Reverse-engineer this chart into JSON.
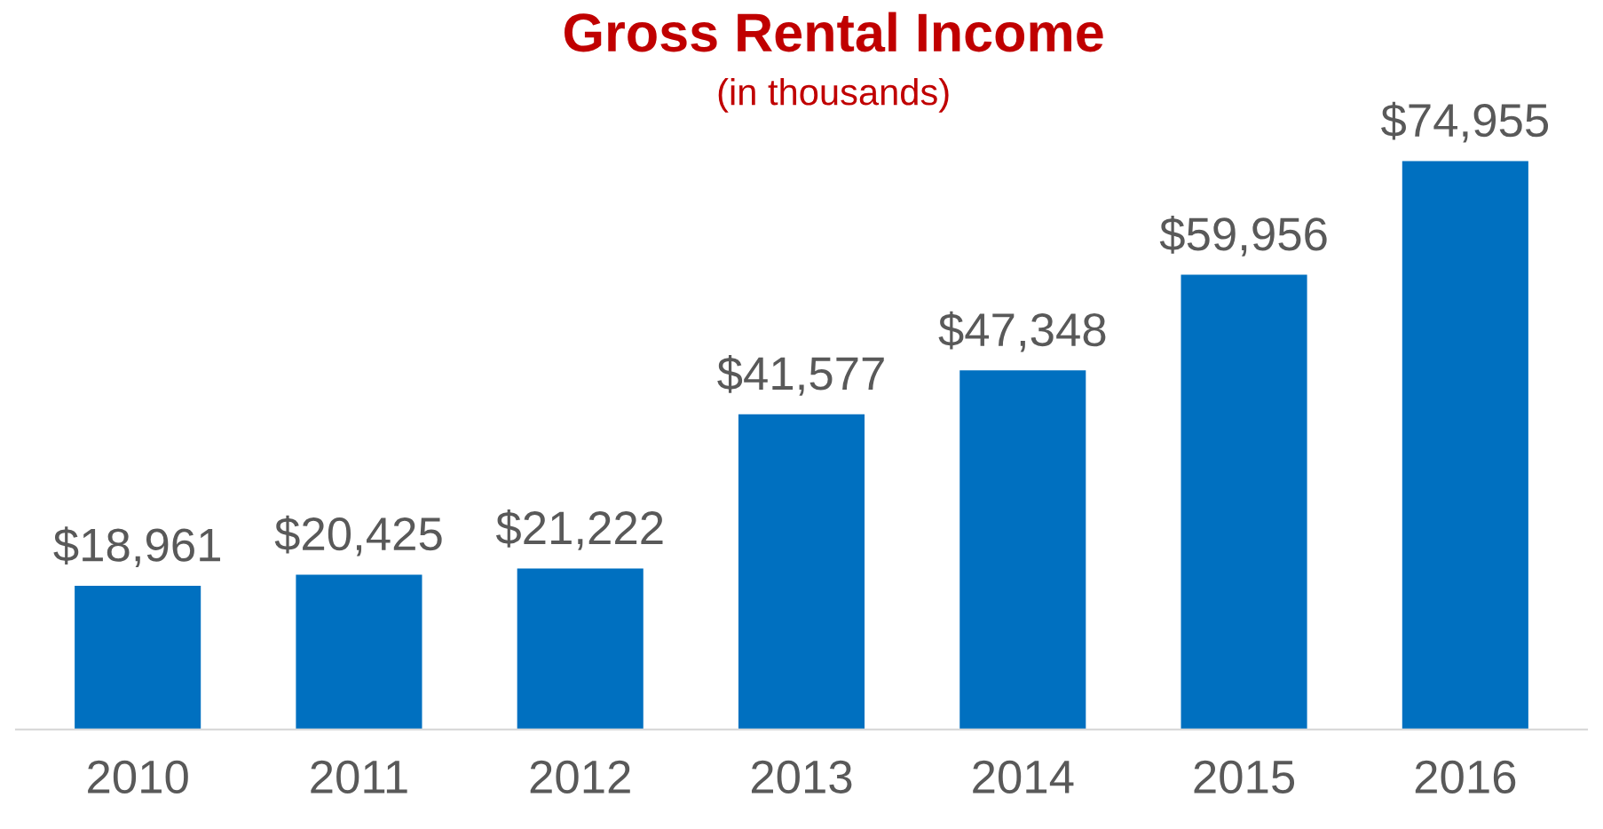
{
  "chart_data": {
    "type": "bar",
    "title": "Gross Rental Income",
    "subtitle": "(in thousands)",
    "categories": [
      "2010",
      "2011",
      "2012",
      "2013",
      "2014",
      "2015",
      "2016"
    ],
    "values": [
      18961,
      20425,
      21222,
      41577,
      47348,
      59956,
      74955
    ],
    "value_labels": [
      "$18,961",
      "$20,425",
      "$21,222",
      "$41,577",
      "$47,348",
      "$59,956",
      "$74,955"
    ],
    "color": "#0070c0",
    "tick_labels": "x",
    "grid": false,
    "legend": false
  }
}
